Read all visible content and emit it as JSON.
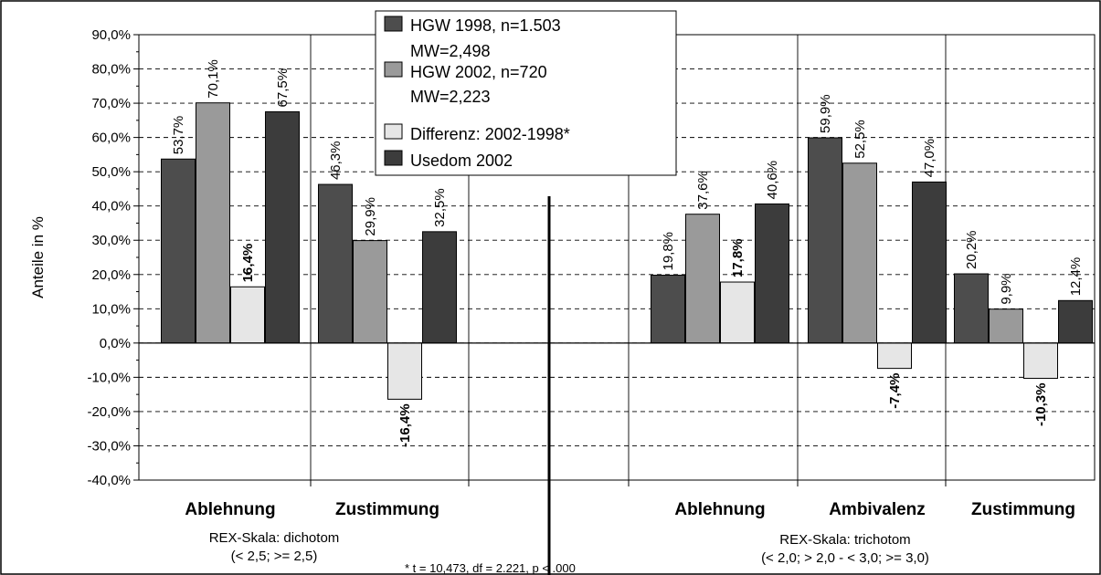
{
  "chart_data": {
    "type": "bar",
    "ylabel": "Anteile in %",
    "ylim": [
      -40,
      90
    ],
    "ytick_step": 10,
    "grid": true,
    "legend_position": "top-center",
    "groups": [
      {
        "label": "REX-Skala: dichotom",
        "sublabel": "(< 2,5; >= 2,5)",
        "categories": [
          "Ablehnung",
          "Zustimmung"
        ]
      },
      {
        "label": "REX-Skala: trichotom",
        "sublabel": "(< 2,0; > 2,0 - < 3,0; >= 3,0)",
        "categories": [
          "Ablehnung",
          "Ambivalenz",
          "Zustimmung"
        ]
      }
    ],
    "series": [
      {
        "name": "HGW 1998, n=1.503\nMW=2,498",
        "color": "#4d4d4d",
        "bold_labels": false,
        "values": [
          53.7,
          46.3,
          19.8,
          59.9,
          20.2
        ],
        "labels": [
          "53,7%",
          "46,3%",
          "19,8%",
          "59,9%",
          "20,2%"
        ]
      },
      {
        "name": "HGW 2002, n=720\nMW=2,223",
        "color": "#9a9a9a",
        "bold_labels": false,
        "values": [
          70.1,
          29.9,
          37.6,
          52.5,
          9.9
        ],
        "labels": [
          "70,1%",
          "29,9%",
          "37,6%",
          "52,5%",
          "9,9%"
        ]
      },
      {
        "name": "Differenz: 2002-1998*",
        "color": "#e6e6e6",
        "bold_labels": true,
        "values": [
          16.4,
          -16.4,
          17.8,
          -7.4,
          -10.3
        ],
        "labels": [
          "16,4%",
          "-16,4%",
          "17,8%",
          "-7,4%",
          "-10,3%"
        ]
      },
      {
        "name": "Usedom 2002",
        "color": "#3c3c3c",
        "bold_labels": false,
        "values": [
          67.5,
          32.5,
          40.6,
          47.0,
          12.4
        ],
        "labels": [
          "67,5%",
          "32,5%",
          "40,6%",
          "47,0%",
          "12,4%"
        ]
      }
    ],
    "footnote": "* t = 10,473, df = 2.221, p < .000"
  }
}
